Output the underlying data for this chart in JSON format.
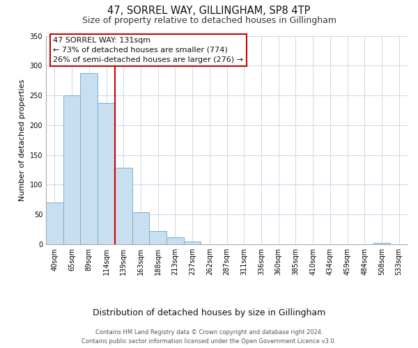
{
  "title": "47, SORREL WAY, GILLINGHAM, SP8 4TP",
  "subtitle": "Size of property relative to detached houses in Gillingham",
  "xlabel": "Distribution of detached houses by size in Gillingham",
  "ylabel": "Number of detached properties",
  "bar_labels": [
    "40sqm",
    "65sqm",
    "89sqm",
    "114sqm",
    "139sqm",
    "163sqm",
    "188sqm",
    "213sqm",
    "237sqm",
    "262sqm",
    "287sqm",
    "311sqm",
    "336sqm",
    "360sqm",
    "385sqm",
    "410sqm",
    "434sqm",
    "459sqm",
    "484sqm",
    "508sqm",
    "533sqm"
  ],
  "bar_values": [
    70,
    250,
    287,
    237,
    128,
    54,
    22,
    11,
    4,
    0,
    0,
    0,
    0,
    0,
    0,
    0,
    0,
    0,
    0,
    2,
    0
  ],
  "bar_color": "#c8dff0",
  "bar_edge_color": "#7aaed0",
  "vline_color": "#cc0000",
  "vline_index": 3.5,
  "ylim": [
    0,
    350
  ],
  "yticks": [
    0,
    50,
    100,
    150,
    200,
    250,
    300,
    350
  ],
  "annotation_title": "47 SORREL WAY: 131sqm",
  "annotation_line1": "← 73% of detached houses are smaller (774)",
  "annotation_line2": "26% of semi-detached houses are larger (276) →",
  "annotation_box_color": "#ffffff",
  "annotation_box_edge": "#cc0000",
  "footer_line1": "Contains HM Land Registry data © Crown copyright and database right 2024.",
  "footer_line2": "Contains public sector information licensed under the Open Government Licence v3.0.",
  "title_fontsize": 10.5,
  "subtitle_fontsize": 9,
  "xlabel_fontsize": 9,
  "ylabel_fontsize": 8,
  "tick_fontsize": 7,
  "annotation_fontsize": 8,
  "footer_fontsize": 6,
  "background_color": "#ffffff",
  "grid_color": "#c8d8e8"
}
